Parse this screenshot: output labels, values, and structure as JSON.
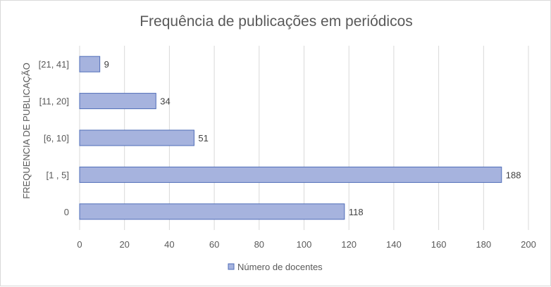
{
  "chart_data": {
    "type": "bar",
    "orientation": "horizontal",
    "title": "Frequência de publicações em periódicos",
    "ylabel": "FREQUENCIA DE PUBLICAÇÃO",
    "xlabel": "",
    "categories": [
      "[21, 41]",
      "[11, 20]",
      "[6, 10]",
      "[1 , 5]",
      "0"
    ],
    "series": [
      {
        "name": "Número de docentes",
        "values": [
          9,
          34,
          51,
          188,
          118
        ]
      }
    ],
    "xlim": [
      0,
      200
    ],
    "xticks": [
      0,
      20,
      40,
      60,
      80,
      100,
      120,
      140,
      160,
      180,
      200
    ],
    "grid": true,
    "legend_position": "bottom",
    "colors": {
      "bar_fill": "#a6b3de",
      "bar_stroke": "#4f6db8",
      "grid": "#d9d9d9"
    }
  }
}
